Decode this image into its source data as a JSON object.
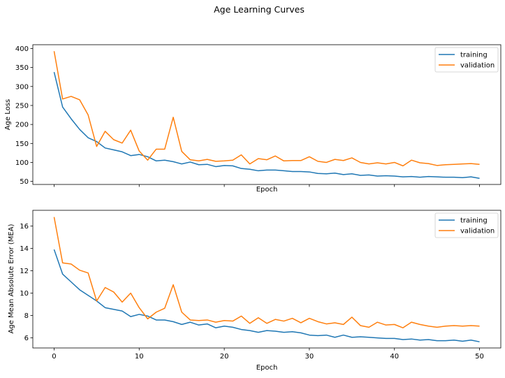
{
  "figure": {
    "title": "Age Learning Curves"
  },
  "colors": {
    "training": "#1f77b4",
    "validation": "#ff7f0e"
  },
  "chart_data": [
    {
      "type": "line",
      "title": "",
      "xlabel": "Epoch",
      "ylabel": "Age Loss",
      "xlim": [
        -2.5,
        52.5
      ],
      "ylim": [
        42,
        410
      ],
      "xticks": [],
      "yticks": [
        50,
        100,
        150,
        200,
        250,
        300,
        350,
        400
      ],
      "legend_position": "top-right",
      "grid": false,
      "x": [
        0,
        1,
        2,
        3,
        4,
        5,
        6,
        7,
        8,
        9,
        10,
        11,
        12,
        13,
        14,
        15,
        16,
        17,
        18,
        19,
        20,
        21,
        22,
        23,
        24,
        25,
        26,
        27,
        28,
        29,
        30,
        31,
        32,
        33,
        34,
        35,
        36,
        37,
        38,
        39,
        40,
        41,
        42,
        43,
        44,
        45,
        46,
        47,
        48,
        49,
        50
      ],
      "series": [
        {
          "name": "training",
          "values": [
            338,
            246,
            215,
            187,
            165,
            155,
            138,
            133,
            128,
            118,
            121,
            115,
            104,
            106,
            102,
            96,
            101,
            94,
            95,
            89,
            92,
            91,
            84,
            82,
            78,
            80,
            80,
            78,
            76,
            76,
            75,
            71,
            70,
            72,
            68,
            70,
            66,
            67,
            64,
            65,
            64,
            62,
            63,
            61,
            63,
            62,
            61,
            61,
            60,
            62,
            58
          ]
        },
        {
          "name": "validation",
          "values": [
            393,
            267,
            274,
            265,
            225,
            142,
            182,
            160,
            151,
            185,
            130,
            106,
            135,
            135,
            219,
            129,
            107,
            104,
            108,
            103,
            104,
            106,
            120,
            96,
            110,
            107,
            117,
            104,
            105,
            105,
            115,
            103,
            100,
            108,
            105,
            112,
            100,
            96,
            99,
            96,
            100,
            91,
            106,
            99,
            97,
            92,
            94,
            95,
            96,
            97,
            95
          ]
        }
      ]
    },
    {
      "type": "line",
      "title": "",
      "xlabel": "Epoch",
      "ylabel": "Age Mean Absolute Error (MEA)",
      "xlim": [
        -2.5,
        52.5
      ],
      "ylim": [
        5.1,
        17.4
      ],
      "xticks": [
        0,
        10,
        20,
        30,
        40,
        50
      ],
      "yticks": [
        6,
        8,
        10,
        12,
        14,
        16
      ],
      "legend_position": "top-right",
      "grid": false,
      "x": [
        0,
        1,
        2,
        3,
        4,
        5,
        6,
        7,
        8,
        9,
        10,
        11,
        12,
        13,
        14,
        15,
        16,
        17,
        18,
        19,
        20,
        21,
        22,
        23,
        24,
        25,
        26,
        27,
        28,
        29,
        30,
        31,
        32,
        33,
        34,
        35,
        36,
        37,
        38,
        39,
        40,
        41,
        42,
        43,
        44,
        45,
        46,
        47,
        48,
        49,
        50
      ],
      "series": [
        {
          "name": "training",
          "values": [
            13.9,
            11.7,
            11.0,
            10.3,
            9.8,
            9.3,
            8.7,
            8.55,
            8.4,
            7.9,
            8.1,
            7.95,
            7.6,
            7.6,
            7.45,
            7.2,
            7.4,
            7.15,
            7.25,
            6.9,
            7.05,
            6.95,
            6.75,
            6.65,
            6.5,
            6.65,
            6.6,
            6.5,
            6.55,
            6.45,
            6.25,
            6.2,
            6.25,
            6.05,
            6.25,
            6.05,
            6.1,
            6.05,
            6.0,
            5.95,
            5.95,
            5.85,
            5.9,
            5.8,
            5.85,
            5.75,
            5.75,
            5.8,
            5.7,
            5.8,
            5.65
          ]
        },
        {
          "name": "validation",
          "values": [
            16.8,
            12.7,
            12.6,
            12.05,
            11.8,
            9.3,
            10.5,
            10.1,
            9.2,
            10.0,
            8.7,
            7.7,
            8.3,
            8.65,
            10.75,
            8.3,
            7.6,
            7.55,
            7.6,
            7.4,
            7.55,
            7.5,
            7.95,
            7.3,
            7.8,
            7.3,
            7.65,
            7.5,
            7.75,
            7.35,
            7.75,
            7.45,
            7.25,
            7.35,
            7.2,
            7.85,
            7.1,
            6.95,
            7.4,
            7.15,
            7.2,
            6.9,
            7.4,
            7.2,
            7.05,
            6.95,
            7.05,
            7.1,
            7.05,
            7.1,
            7.05
          ]
        }
      ]
    }
  ]
}
